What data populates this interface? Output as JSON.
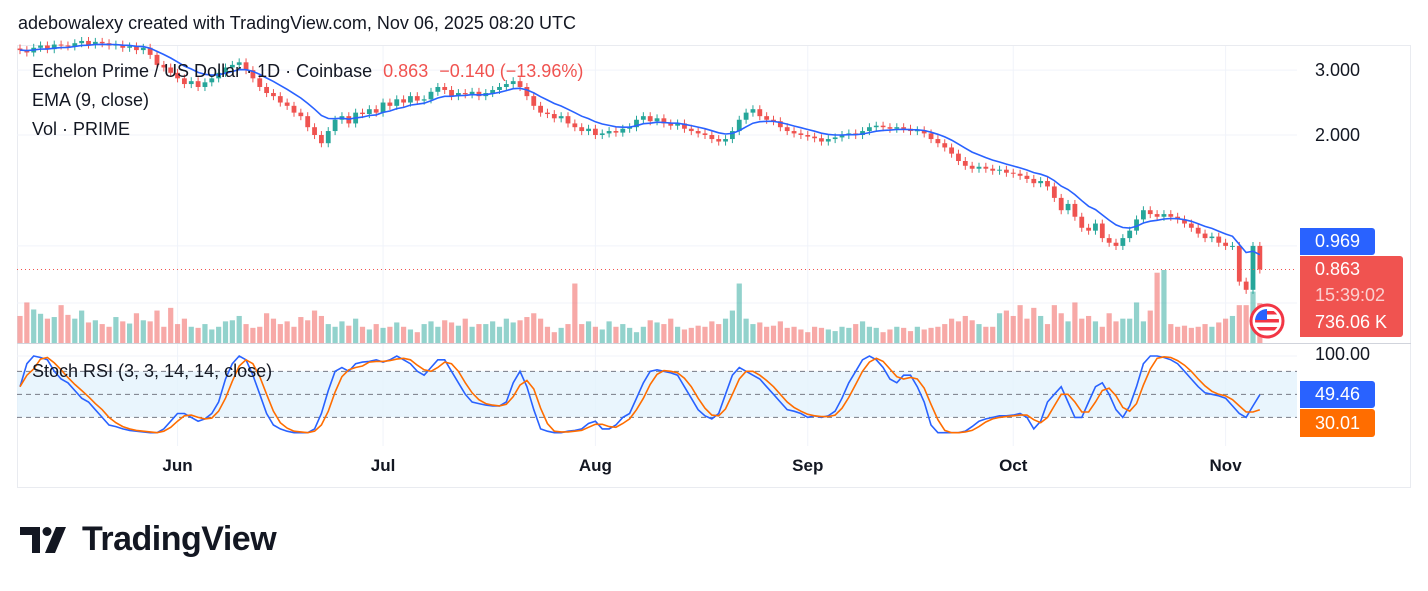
{
  "credit": "adebowalexy created with TradingView.com, Nov 06, 2025 08:20 UTC",
  "legend": {
    "symbol": "Echelon Prime / US Dollar · 1D · Coinbase",
    "last": "0.863",
    "change": "−0.140 (−13.96%)",
    "ema": "EMA (9, close)",
    "vol": "Vol · PRIME",
    "stoch": "Stoch RSI (3, 3, 14, 14, close)"
  },
  "price_axis": [
    "3.000",
    "2.000"
  ],
  "stoch_axis": [
    "100.00"
  ],
  "tags": {
    "ema": "0.969",
    "price": "0.863",
    "countdown": "15:39:02",
    "volume": "736.06 K",
    "stoch_k": "49.46",
    "stoch_d": "30.01"
  },
  "brand": "TradingView",
  "colors": {
    "up": "#26a69a",
    "down": "#ef5350",
    "ema": "#2962ff",
    "k": "#2962ff",
    "d": "#ff6d00",
    "band": "#e3f2fd"
  },
  "chart_data": {
    "type": "candlestick",
    "log_scale": true,
    "last_date": "2025-11-06",
    "x_tick_labels": [
      "Jun",
      "Jul",
      "Aug",
      "Sep",
      "Oct",
      "Nov"
    ],
    "close": [
      3.4,
      3.35,
      3.45,
      3.5,
      3.42,
      3.52,
      3.5,
      3.48,
      3.55,
      3.6,
      3.52,
      3.58,
      3.55,
      3.5,
      3.52,
      3.45,
      3.48,
      3.4,
      3.45,
      3.3,
      3.1,
      3.05,
      2.95,
      2.85,
      2.75,
      2.8,
      2.7,
      2.78,
      2.85,
      2.95,
      3.05,
      3.1,
      3.15,
      3.0,
      2.85,
      2.7,
      2.6,
      2.55,
      2.45,
      2.4,
      2.3,
      2.25,
      2.1,
      2.0,
      1.9,
      2.05,
      2.2,
      2.25,
      2.15,
      2.3,
      2.28,
      2.35,
      2.3,
      2.45,
      2.4,
      2.5,
      2.45,
      2.55,
      2.48,
      2.5,
      2.62,
      2.7,
      2.65,
      2.55,
      2.6,
      2.58,
      2.62,
      2.55,
      2.6,
      2.65,
      2.7,
      2.75,
      2.8,
      2.7,
      2.55,
      2.4,
      2.3,
      2.28,
      2.22,
      2.25,
      2.15,
      2.1,
      2.05,
      2.08,
      2.0,
      2.02,
      2.05,
      2.03,
      2.08,
      2.1,
      2.2,
      2.25,
      2.18,
      2.22,
      2.15,
      2.12,
      2.15,
      2.08,
      2.05,
      2.02,
      2.0,
      1.95,
      1.92,
      1.95,
      2.05,
      2.2,
      2.3,
      2.35,
      2.25,
      2.2,
      2.18,
      2.1,
      2.05,
      2.02,
      2.0,
      1.98,
      1.96,
      1.92,
      1.95,
      1.97,
      2.0,
      2.02,
      2.0,
      2.05,
      2.1,
      2.12,
      2.1,
      2.08,
      2.1,
      2.08,
      2.05,
      2.06,
      2.02,
      1.95,
      1.9,
      1.85,
      1.78,
      1.7,
      1.65,
      1.62,
      1.64,
      1.62,
      1.6,
      1.61,
      1.58,
      1.57,
      1.55,
      1.52,
      1.48,
      1.5,
      1.45,
      1.35,
      1.25,
      1.3,
      1.2,
      1.12,
      1.1,
      1.15,
      1.05,
      1.02,
      1.0,
      1.05,
      1.1,
      1.18,
      1.25,
      1.22,
      1.2,
      1.22,
      1.2,
      1.18,
      1.15,
      1.12,
      1.08,
      1.05,
      1.06,
      1.02,
      1.0,
      1.0,
      0.8,
      0.76,
      1.0,
      0.863
    ],
    "volume_k": [
      500,
      750,
      620,
      540,
      450,
      480,
      700,
      520,
      450,
      600,
      380,
      420,
      350,
      300,
      480,
      400,
      360,
      550,
      420,
      400,
      600,
      300,
      650,
      350,
      450,
      300,
      280,
      350,
      250,
      300,
      400,
      420,
      500,
      350,
      280,
      300,
      550,
      450,
      350,
      400,
      300,
      480,
      420,
      600,
      500,
      350,
      300,
      400,
      320,
      450,
      300,
      250,
      350,
      280,
      300,
      380,
      300,
      250,
      200,
      350,
      400,
      300,
      420,
      380,
      320,
      450,
      300,
      350,
      350,
      400,
      300,
      450,
      380,
      420,
      480,
      550,
      450,
      300,
      200,
      280,
      350,
      1100,
      350,
      400,
      300,
      250,
      400,
      300,
      350,
      280,
      200,
      300,
      420,
      380,
      350,
      450,
      300,
      250,
      280,
      320,
      300,
      400,
      350,
      450,
      600,
      1100,
      450,
      350,
      380,
      300,
      320,
      400,
      280,
      300,
      250,
      200,
      300,
      280,
      250,
      220,
      300,
      280,
      350,
      400,
      300,
      280,
      200,
      250,
      300,
      280,
      220,
      300,
      250,
      280,
      300,
      350,
      450,
      400,
      500,
      420,
      350,
      300,
      300,
      550,
      600,
      500,
      700,
      450,
      650,
      500,
      350,
      700,
      550,
      400,
      750,
      450,
      500,
      400,
      300,
      550,
      400,
      450,
      450,
      750,
      400,
      600,
      1300,
      1350,
      350,
      300,
      320,
      280,
      300,
      350,
      300,
      380,
      450,
      500,
      700,
      700,
      950,
      736.06
    ],
    "stoch_k": [
      60,
      90,
      100,
      98,
      95,
      80,
      70,
      65,
      55,
      45,
      40,
      30,
      20,
      10,
      8,
      5,
      3,
      2,
      1,
      0,
      0,
      5,
      15,
      25,
      25,
      20,
      15,
      18,
      25,
      40,
      70,
      90,
      100,
      95,
      75,
      50,
      25,
      10,
      5,
      2,
      0,
      0,
      0,
      5,
      25,
      55,
      80,
      85,
      80,
      90,
      92,
      93,
      95,
      92,
      95,
      100,
      95,
      90,
      80,
      75,
      85,
      95,
      95,
      80,
      65,
      50,
      40,
      38,
      36,
      35,
      35,
      40,
      65,
      80,
      60,
      30,
      5,
      2,
      0,
      0,
      2,
      3,
      5,
      12,
      15,
      5,
      5,
      10,
      20,
      25,
      45,
      65,
      80,
      82,
      80,
      78,
      75,
      60,
      45,
      30,
      22,
      18,
      25,
      50,
      75,
      85,
      80,
      75,
      70,
      60,
      50,
      40,
      30,
      28,
      25,
      20,
      22,
      20,
      22,
      28,
      45,
      65,
      80,
      95,
      100,
      95,
      85,
      70,
      65,
      75,
      75,
      60,
      40,
      10,
      0,
      0,
      0,
      0,
      2,
      8,
      15,
      18,
      20,
      22,
      22,
      23,
      25,
      20,
      5,
      15,
      40,
      50,
      60,
      40,
      20,
      20,
      40,
      60,
      65,
      50,
      30,
      20,
      35,
      60,
      90,
      100,
      100,
      98,
      95,
      90,
      80,
      70,
      60,
      52,
      50,
      48,
      45,
      35,
      25,
      20,
      35,
      49.46
    ],
    "stoch_d": [
      60,
      75,
      83,
      96,
      98,
      91,
      82,
      72,
      63,
      55,
      47,
      38,
      30,
      20,
      13,
      8,
      5,
      3,
      2,
      1,
      0,
      2,
      7,
      15,
      22,
      23,
      20,
      18,
      19,
      28,
      45,
      67,
      87,
      95,
      90,
      73,
      50,
      28,
      13,
      6,
      2,
      1,
      0,
      2,
      10,
      28,
      53,
      73,
      82,
      85,
      87,
      92,
      93,
      93,
      94,
      96,
      97,
      95,
      88,
      82,
      80,
      85,
      92,
      90,
      80,
      65,
      52,
      43,
      38,
      36,
      35,
      37,
      47,
      62,
      68,
      57,
      32,
      12,
      2,
      1,
      1,
      2,
      3,
      7,
      11,
      11,
      8,
      7,
      12,
      18,
      30,
      45,
      63,
      76,
      81,
      80,
      78,
      71,
      60,
      45,
      32,
      23,
      22,
      31,
      50,
      70,
      80,
      80,
      75,
      68,
      60,
      50,
      40,
      33,
      28,
      24,
      22,
      21,
      21,
      23,
      32,
      46,
      63,
      80,
      92,
      97,
      93,
      83,
      73,
      70,
      72,
      70,
      58,
      37,
      17,
      3,
      0,
      0,
      1,
      3,
      8,
      14,
      18,
      20,
      21,
      22,
      23,
      23,
      17,
      13,
      20,
      35,
      50,
      50,
      40,
      27,
      27,
      40,
      55,
      58,
      48,
      33,
      28,
      38,
      62,
      83,
      97,
      99,
      98,
      94,
      88,
      80,
      70,
      61,
      54,
      50,
      48,
      43,
      35,
      27,
      27,
      30.01
    ],
    "stoch_levels": [
      80,
      50,
      20
    ],
    "stoch_range": [
      0,
      100
    ]
  }
}
